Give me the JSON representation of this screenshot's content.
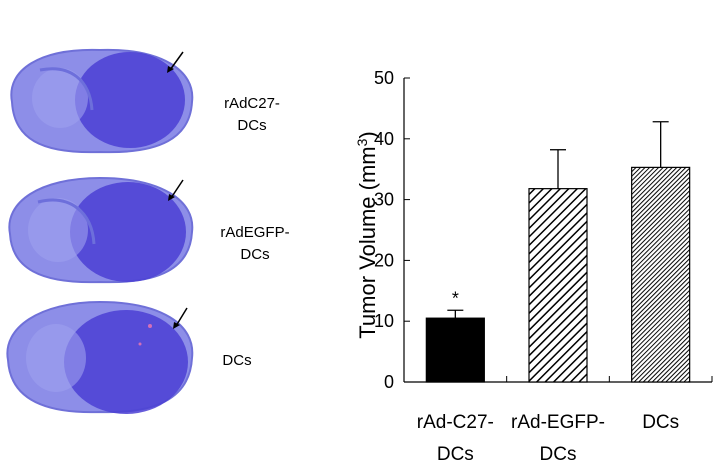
{
  "micrographs": {
    "slices": [
      {
        "label_line1": "rAdC27-",
        "label_line2": "DCs"
      },
      {
        "label_line1": "rAdEGFP-",
        "label_line2": "DCs"
      },
      {
        "label_line1": "DCs",
        "label_line2": ""
      }
    ],
    "colors": {
      "tissue_light": "#8d8ee8",
      "tissue_dark": "#4b3fd3",
      "tumor": "#3a2cc9"
    }
  },
  "chart_data": {
    "type": "bar",
    "categories": [
      {
        "line1": "rAd-C27-",
        "line2": "DCs"
      },
      {
        "line1": "rAd-EGFP-",
        "line2": "DCs"
      },
      {
        "line1": "DCs",
        "line2": ""
      }
    ],
    "series": [
      {
        "values": [
          10.5,
          31.8,
          35.3
        ],
        "errors": [
          1.3,
          6.4,
          7.5
        ]
      }
    ],
    "bar_fills": [
      "solid-black",
      "diagonal-hatch",
      "dense-diagonal-hatch"
    ],
    "ylabel": "Tumor Volume (mm",
    "ylabel_sup": "3",
    "ylabel_close": ")",
    "ylim": [
      0,
      50
    ],
    "yticks": [
      "0",
      "10",
      "20",
      "30",
      "40",
      "50"
    ],
    "annotations": [
      {
        "category_index": 0,
        "text": "*"
      }
    ],
    "grid": false
  }
}
